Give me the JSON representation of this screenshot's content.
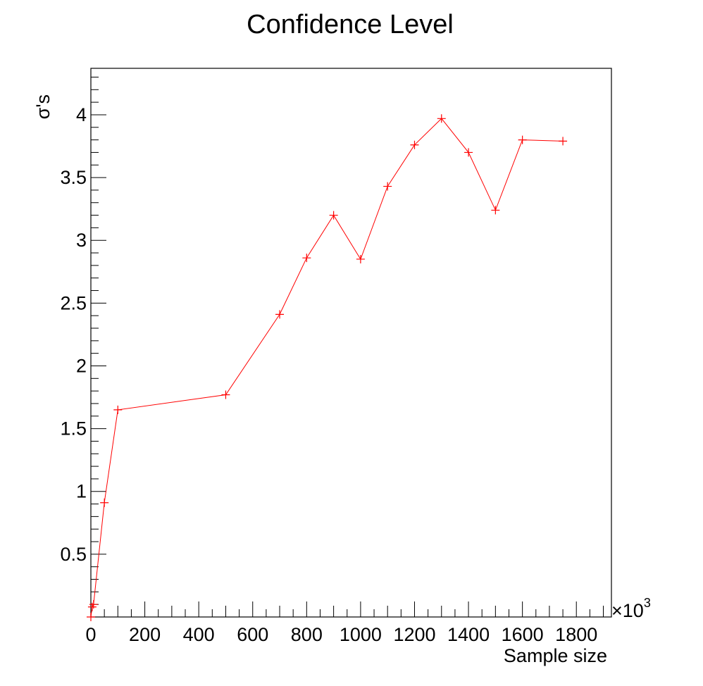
{
  "chart_data": {
    "type": "line",
    "title": "Confidence Level",
    "xlabel": "Sample size",
    "ylabel": "σ's",
    "x_multiplier": "×10",
    "x_multiplier_exp": "3",
    "xlim": [
      0,
      1930
    ],
    "ylim": [
      0,
      4.37
    ],
    "x_ticks": [
      0,
      200,
      400,
      600,
      800,
      1000,
      1200,
      1400,
      1600,
      1800
    ],
    "y_ticks": [
      0.5,
      1,
      1.5,
      2,
      2.5,
      3,
      3.5,
      4
    ],
    "grid": false,
    "colors": {
      "series": "#ff0000",
      "axis": "#000000"
    },
    "series": [
      {
        "marker": "plus",
        "points": [
          {
            "x": 0,
            "y": 0.0
          },
          {
            "x": 5,
            "y": 0.08
          },
          {
            "x": 10,
            "y": 0.1
          },
          {
            "x": 50,
            "y": 0.91
          },
          {
            "x": 100,
            "y": 1.65
          },
          {
            "x": 500,
            "y": 1.77
          },
          {
            "x": 700,
            "y": 2.41
          },
          {
            "x": 800,
            "y": 2.86
          },
          {
            "x": 900,
            "y": 3.2
          },
          {
            "x": 1000,
            "y": 2.85
          },
          {
            "x": 1100,
            "y": 3.43
          },
          {
            "x": 1200,
            "y": 3.76
          },
          {
            "x": 1300,
            "y": 3.97
          },
          {
            "x": 1400,
            "y": 3.7
          },
          {
            "x": 1500,
            "y": 3.24
          },
          {
            "x": 1600,
            "y": 3.8
          },
          {
            "x": 1750,
            "y": 3.79
          }
        ]
      }
    ]
  }
}
